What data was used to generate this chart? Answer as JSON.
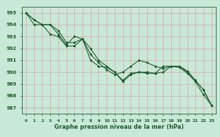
{
  "xlabel": "    ",
  "label_text": "    ",
  "title_text": "    ",
  "xlabel_text": "    ",
  "x_label_main": "Graphe pression ",
  "xlabel_main": "Graphe pression",
  "text_x": "Graphe pression niveau de la mer (hPa)",
  "xlim": [
    -0.5,
    23.5
  ],
  "ylim": [
    986.5,
    995.5
  ],
  "yticks": [
    987,
    988,
    989,
    990,
    991,
    992,
    993,
    994,
    995
  ],
  "xticks": [
    0,
    1,
    2,
    3,
    4,
    5,
    6,
    7,
    8,
    9,
    10,
    11,
    12,
    13,
    14,
    15,
    16,
    17,
    18,
    19,
    20,
    21,
    22,
    23
  ],
  "bg_color": "#c8e8d8",
  "grid_color": "#e0a0a0",
  "line_color": "#1a5c2a",
  "series1": [
    995.0,
    994.4,
    994.0,
    994.0,
    993.5,
    992.5,
    992.5,
    992.8,
    992.0,
    991.0,
    990.5,
    990.0,
    989.3,
    989.9,
    990.0,
    990.0,
    989.9,
    990.0,
    990.5,
    990.5,
    990.0,
    989.3,
    988.5,
    987.2
  ],
  "series2": [
    995.0,
    994.4,
    994.0,
    994.0,
    993.2,
    992.3,
    993.0,
    992.8,
    991.5,
    990.8,
    990.2,
    989.8,
    990.0,
    990.5,
    991.0,
    990.8,
    990.5,
    990.3,
    990.5,
    990.5,
    990.1,
    989.3,
    988.5,
    987.2
  ],
  "series3": [
    995.0,
    994.0,
    994.0,
    993.2,
    993.0,
    992.2,
    992.2,
    992.8,
    991.0,
    990.5,
    990.4,
    990.0,
    989.2,
    989.8,
    990.0,
    989.9,
    989.9,
    990.5,
    990.5,
    990.4,
    989.9,
    989.2,
    988.1,
    987.2
  ]
}
